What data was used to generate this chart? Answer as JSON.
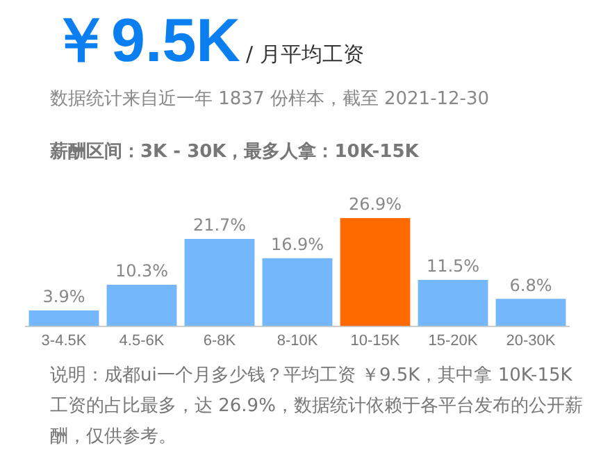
{
  "chart_data": {
    "type": "bar",
    "title": "￥9.5K",
    "subtitle": "/ 月平均工资",
    "annotations": [
      "数据统计来自近一年 1837 份样本，截至 2021-12-30",
      "薪酬区间：3K - 30K，最多人拿：10K-15K",
      "说明：成都ui一个月多少钱？平均工资 ￥9.5K，其中拿 10K-15K 工资的占比最多，达 26.9%，数据统计依赖于各平台发布的公开薪酬，仅供参考。"
    ],
    "categories": [
      "3-4.5K",
      "4.5-6K",
      "6-8K",
      "8-10K",
      "10-15K",
      "15-20K",
      "20-30K"
    ],
    "values": [
      3.9,
      10.3,
      21.7,
      16.9,
      26.9,
      11.5,
      6.8
    ],
    "value_labels": [
      "3.9%",
      "10.3%",
      "21.7%",
      "16.9%",
      "26.9%",
      "11.5%",
      "6.8%"
    ],
    "colors": [
      "#74b6fa",
      "#74b6fa",
      "#74b6fa",
      "#74b6fa",
      "#ff6a00",
      "#74b6fa",
      "#74b6fa"
    ],
    "grid": false
  }
}
